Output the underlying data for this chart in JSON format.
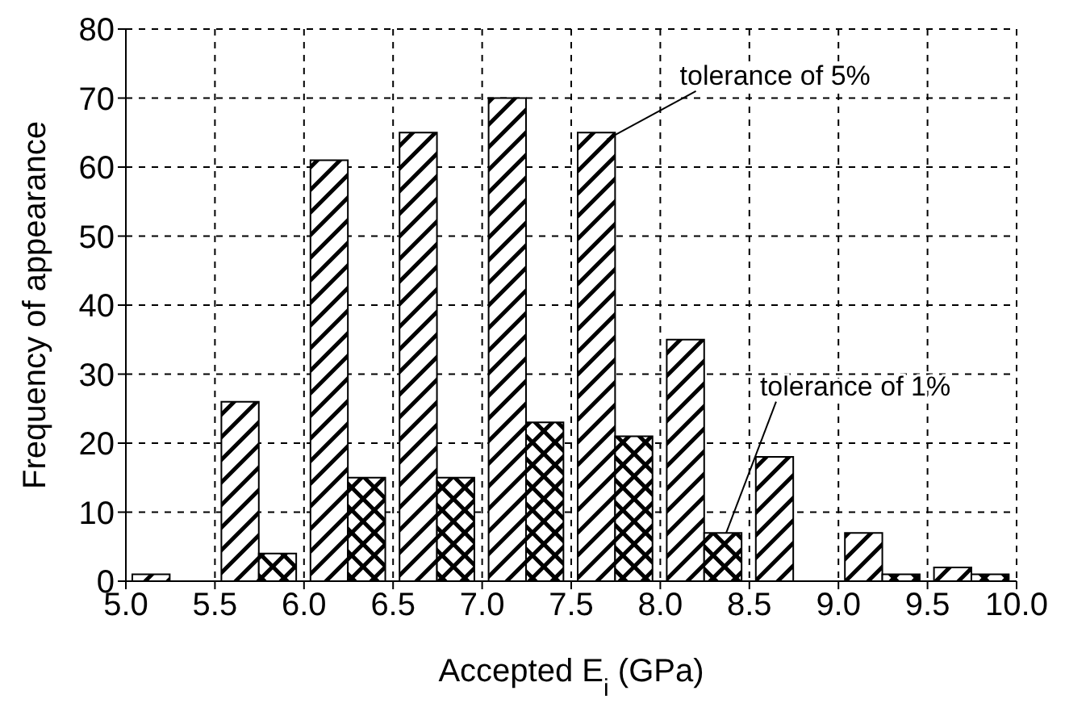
{
  "chart_data": {
    "type": "histogram",
    "xlabel": "Accepted E$_{i}$ (GPa)",
    "ylabel": "Frequency of appearance",
    "bins": [
      5.0,
      5.5,
      6.0,
      6.5,
      7.0,
      7.5,
      8.0,
      8.5,
      9.0,
      9.5,
      10.0
    ],
    "series": [
      {
        "color": "#000000",
        "values": [
          1,
          26,
          61,
          65,
          70,
          65,
          35,
          18,
          7,
          2
        ]
      },
      {
        "color": "#000000",
        "values": [
          0,
          4,
          15,
          15,
          23,
          21,
          7,
          0,
          1,
          1
        ]
      }
    ],
    "xlim": [
      5.0,
      10.0
    ],
    "xticks": [
      {
        "value": 5.0,
        "label": "5.0"
      },
      {
        "value": 5.5,
        "label": "5.5"
      },
      {
        "value": 6.0,
        "label": "6.0"
      },
      {
        "value": 6.5,
        "label": "6.5"
      },
      {
        "value": 7.0,
        "label": "7.0"
      },
      {
        "value": 7.5,
        "label": "7.5"
      },
      {
        "value": 8.0,
        "label": "8.0"
      },
      {
        "value": 8.5,
        "label": "8.5"
      },
      {
        "value": 9.0,
        "label": "9.0"
      },
      {
        "value": 9.5,
        "label": "9.5"
      },
      {
        "value": 10.0,
        "label": "10.0"
      }
    ],
    "ylim": [
      0,
      80
    ],
    "yticks": [
      0,
      10,
      20,
      30,
      40,
      50,
      60,
      70,
      80
    ],
    "grid": true,
    "legend": false,
    "annotations": [
      {
        "text": "tolerance of 5%",
        "x": 7.7,
        "y": 64
      },
      {
        "text": "tolerance of 1%",
        "x": 8.37,
        "y": 7
      }
    ]
  }
}
